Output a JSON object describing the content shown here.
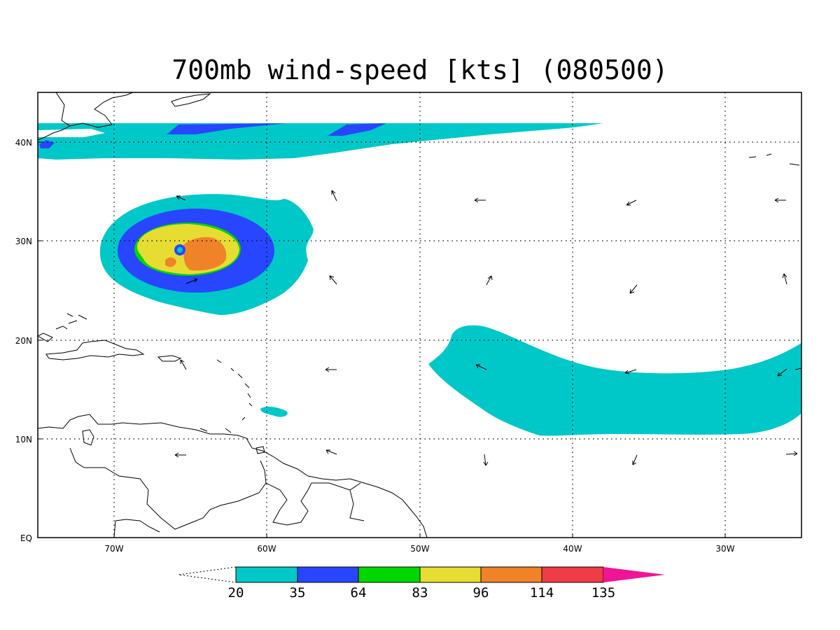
{
  "title": "700mb wind-speed [kts] (080500)",
  "axes": {
    "x_ticks": [
      "70W",
      "60W",
      "50W",
      "40W",
      "30W"
    ],
    "y_ticks": [
      "40N",
      "30N",
      "20N",
      "10N",
      "EQ"
    ]
  },
  "colorbar": {
    "colors": [
      "#00c8c8",
      "#2846ff",
      "#00d800",
      "#e6dc32",
      "#f08228",
      "#f03c46",
      "#f01496"
    ],
    "labels": [
      "20",
      "35",
      "64",
      "83",
      "96",
      "114",
      "135"
    ]
  },
  "wind_arrow_direction_deg": [
    [
      null,
      120,
      null,
      180,
      150,
      180
    ],
    [
      null,
      60,
      60,
      45,
      225,
      80
    ],
    [
      null,
      180,
      150,
      null,
      200,
      30
    ],
    [
      180,
      160,
      265,
      250,
      0
    ]
  ],
  "colors": {
    "land_outline": "#000000",
    "background": "#ffffff"
  }
}
